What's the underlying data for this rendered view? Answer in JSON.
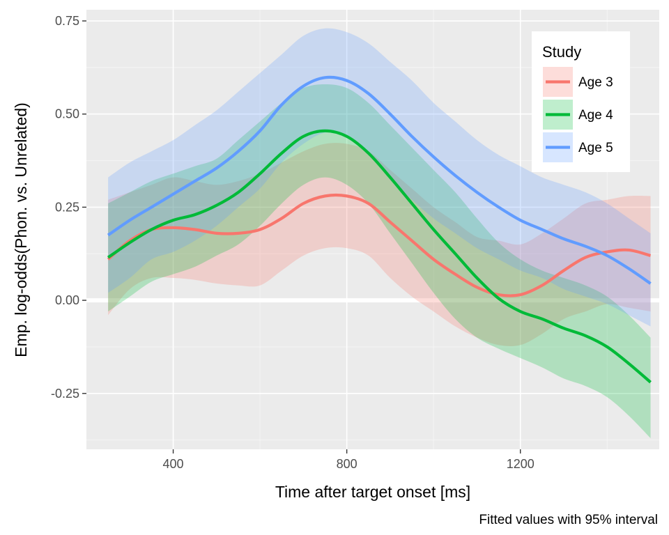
{
  "chart_data": {
    "type": "line",
    "title": "",
    "xlabel": "Time after target onset [ms]",
    "ylabel": "Emp. log-odds(Phon. vs. Unrelated)",
    "caption": "Fitted values with 95% interval",
    "xlim": [
      200,
      1520
    ],
    "ylim": [
      -0.4,
      0.78
    ],
    "x_ticks": [
      400,
      800,
      1200
    ],
    "x_tick_labels": [
      "400",
      "800",
      "1200"
    ],
    "y_ticks": [
      -0.25,
      0,
      0.25,
      0.5,
      0.75
    ],
    "y_tick_labels": [
      "-0.25",
      "0.00",
      "0.25",
      "0.50",
      "0.75"
    ],
    "grid": true,
    "reference_line_y": 0,
    "legend": {
      "title": "Study",
      "position": "top-right"
    },
    "x": [
      250,
      300,
      350,
      400,
      450,
      500,
      550,
      600,
      650,
      700,
      750,
      800,
      850,
      900,
      950,
      1000,
      1050,
      1100,
      1150,
      1200,
      1250,
      1300,
      1350,
      1400,
      1450,
      1500
    ],
    "series": [
      {
        "name": "Age 3",
        "color": "#F8766D",
        "values": [
          0.11,
          0.16,
          0.19,
          0.195,
          0.19,
          0.18,
          0.18,
          0.19,
          0.22,
          0.26,
          0.28,
          0.28,
          0.26,
          0.21,
          0.16,
          0.11,
          0.07,
          0.035,
          0.015,
          0.015,
          0.04,
          0.08,
          0.115,
          0.13,
          0.135,
          0.12
        ],
        "lower": [
          -0.04,
          0.03,
          0.06,
          0.06,
          0.055,
          0.045,
          0.04,
          0.04,
          0.08,
          0.12,
          0.14,
          0.14,
          0.12,
          0.06,
          0.01,
          -0.03,
          -0.07,
          -0.1,
          -0.12,
          -0.12,
          -0.09,
          -0.05,
          -0.03,
          -0.01,
          -0.02,
          -0.03
        ],
        "upper": [
          0.27,
          0.29,
          0.31,
          0.33,
          0.32,
          0.31,
          0.32,
          0.34,
          0.37,
          0.4,
          0.42,
          0.42,
          0.4,
          0.35,
          0.3,
          0.25,
          0.21,
          0.17,
          0.16,
          0.15,
          0.18,
          0.22,
          0.26,
          0.27,
          0.28,
          0.28
        ]
      },
      {
        "name": "Age 4",
        "color": "#00BA38",
        "values": [
          0.115,
          0.155,
          0.19,
          0.215,
          0.23,
          0.255,
          0.29,
          0.34,
          0.395,
          0.44,
          0.455,
          0.44,
          0.395,
          0.33,
          0.26,
          0.19,
          0.125,
          0.06,
          0.005,
          -0.03,
          -0.05,
          -0.075,
          -0.095,
          -0.125,
          -0.17,
          -0.22
        ],
        "lower": [
          -0.03,
          0.01,
          0.05,
          0.07,
          0.09,
          0.12,
          0.15,
          0.2,
          0.26,
          0.31,
          0.33,
          0.31,
          0.26,
          0.18,
          0.1,
          0.02,
          -0.05,
          -0.1,
          -0.13,
          -0.155,
          -0.18,
          -0.21,
          -0.23,
          -0.26,
          -0.31,
          -0.37
        ],
        "upper": [
          0.26,
          0.29,
          0.32,
          0.34,
          0.36,
          0.38,
          0.43,
          0.48,
          0.53,
          0.57,
          0.58,
          0.57,
          0.53,
          0.47,
          0.41,
          0.35,
          0.29,
          0.22,
          0.155,
          0.11,
          0.08,
          0.06,
          0.04,
          0.01,
          -0.04,
          -0.1
        ]
      },
      {
        "name": "Age 5",
        "color": "#619CFF",
        "values": [
          0.175,
          0.215,
          0.25,
          0.285,
          0.32,
          0.355,
          0.4,
          0.455,
          0.525,
          0.575,
          0.598,
          0.59,
          0.555,
          0.5,
          0.44,
          0.385,
          0.335,
          0.29,
          0.25,
          0.215,
          0.19,
          0.165,
          0.145,
          0.12,
          0.085,
          0.045
        ],
        "lower": [
          0.02,
          0.06,
          0.11,
          0.13,
          0.16,
          0.2,
          0.25,
          0.3,
          0.37,
          0.42,
          0.45,
          0.44,
          0.4,
          0.33,
          0.27,
          0.22,
          0.18,
          0.14,
          0.11,
          0.08,
          0.06,
          0.03,
          0.01,
          -0.01,
          -0.04,
          -0.07
        ],
        "upper": [
          0.33,
          0.37,
          0.4,
          0.43,
          0.47,
          0.51,
          0.56,
          0.61,
          0.66,
          0.71,
          0.73,
          0.72,
          0.69,
          0.64,
          0.59,
          0.53,
          0.48,
          0.43,
          0.39,
          0.36,
          0.33,
          0.31,
          0.29,
          0.26,
          0.22,
          0.18
        ]
      }
    ]
  }
}
